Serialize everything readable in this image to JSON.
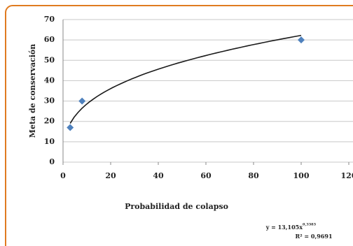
{
  "chart_data": {
    "type": "scatter",
    "x_label": "Probabilidad de colapso",
    "y_label": "Meta de conservación",
    "series": [
      {
        "color": "#4f81bd",
        "x": [
          3,
          8,
          100
        ],
        "values": [
          17,
          30,
          60
        ]
      }
    ],
    "xlim": [
      0,
      120
    ],
    "xticks": [
      0,
      20,
      40,
      60,
      80,
      100,
      120
    ],
    "ylim": [
      0,
      70
    ],
    "yticks": [
      0,
      10,
      20,
      30,
      40,
      50,
      60,
      70
    ],
    "grid": true,
    "trendline": {
      "kind": "power",
      "coefficient": 13.105,
      "exponent": 0.3383,
      "color": "#1a1a1a",
      "equation_label": "y = 13,105x",
      "exponent_label": "0,3383",
      "r2_label": "R² = 0,9691"
    }
  }
}
